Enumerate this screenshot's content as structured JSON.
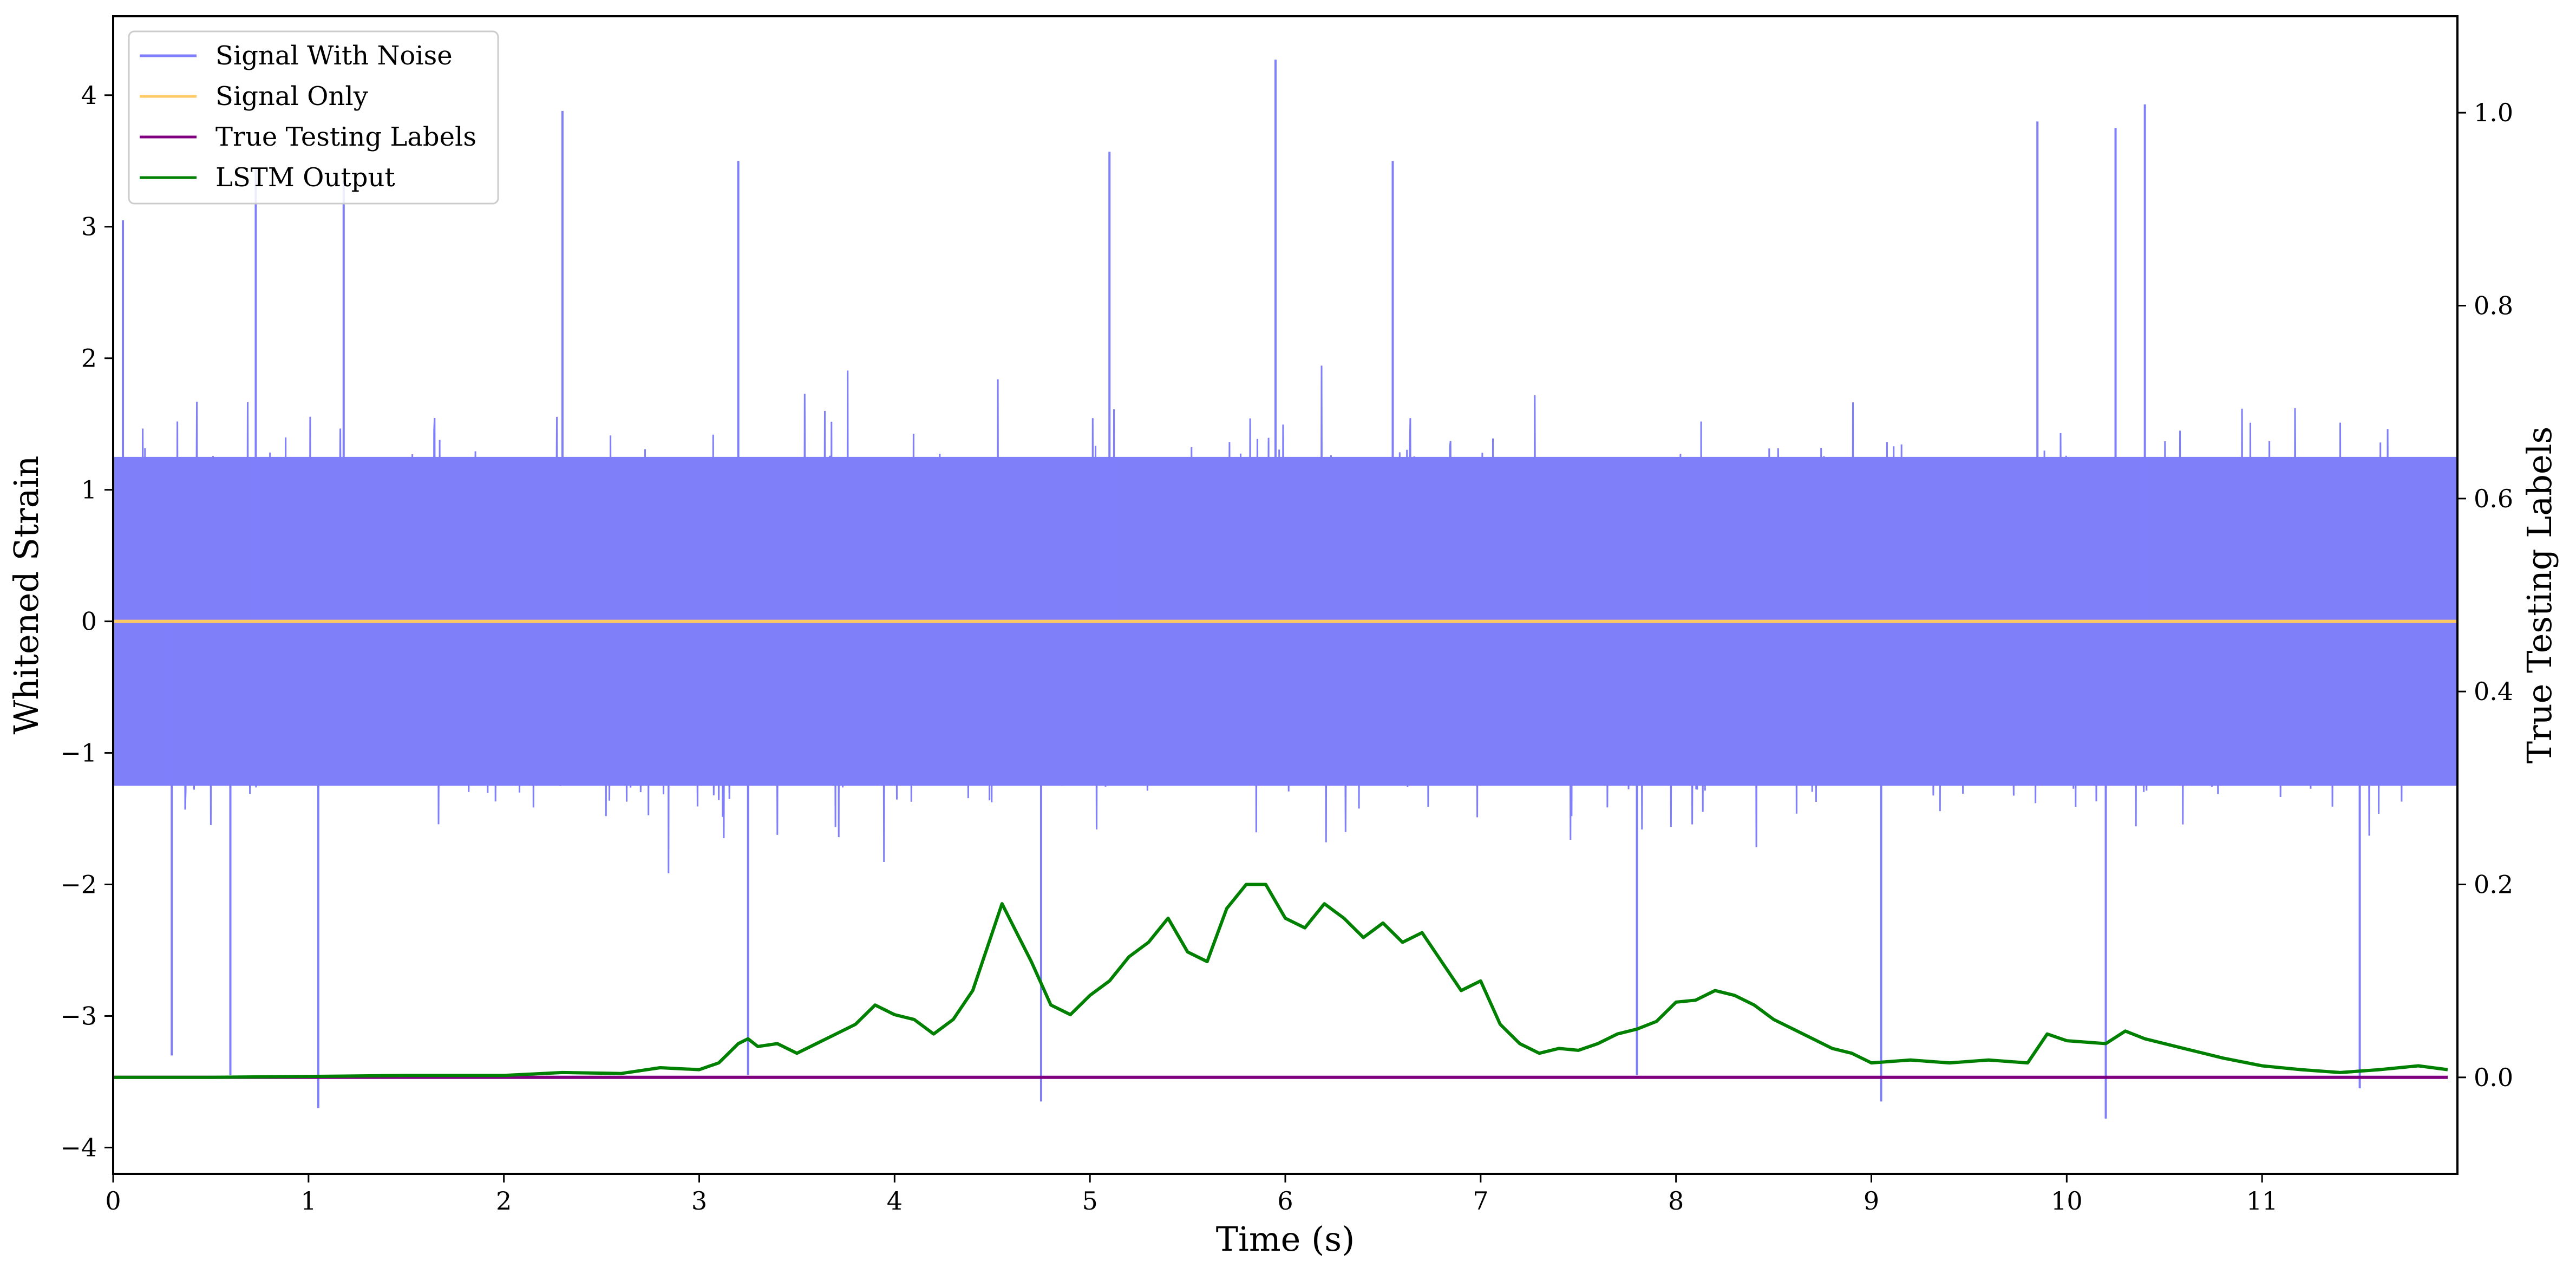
{
  "chart_data": {
    "type": "line",
    "title": "",
    "xlabel": "Time (s)",
    "ylabel": "Whitened Strain",
    "y2label": "True Testing Labels",
    "xlim": [
      0,
      12.0
    ],
    "ylim": [
      -4.2,
      4.6
    ],
    "y2lim": [
      -0.1,
      1.1
    ],
    "x_ticks": [
      0,
      1,
      2,
      3,
      4,
      5,
      6,
      7,
      8,
      9,
      10,
      11
    ],
    "y_ticks": [
      -4,
      -3,
      -2,
      -1,
      0,
      1,
      2,
      3,
      4
    ],
    "y2_ticks": [
      0.0,
      0.2,
      0.4,
      0.6,
      0.8,
      1.0
    ],
    "x_tick_labels": [
      "0",
      "1",
      "2",
      "3",
      "4",
      "5",
      "6",
      "7",
      "8",
      "9",
      "10",
      "11"
    ],
    "y_tick_labels": [
      "−4",
      "−3",
      "−2",
      "−1",
      "0",
      "1",
      "2",
      "3",
      "4"
    ],
    "y2_tick_labels": [
      "0.0",
      "0.2",
      "0.4",
      "0.6",
      "0.8",
      "1.0"
    ],
    "grid": false,
    "legend_position": "top-left",
    "series": [
      {
        "name": "Signal With Noise",
        "axis": "left",
        "color": "#7f7ffa",
        "style": "dense noisy time series, approx. mean 0, std 0.9, spikes up to ~4.3 and down to ~-3.8",
        "x": [
          0,
          0.05,
          0.3,
          0.6,
          0.73,
          1.05,
          1.18,
          2.3,
          3.2,
          3.25,
          4.75,
          5.1,
          5.95,
          6.55,
          7.8,
          9.05,
          9.85,
          10.2,
          10.25,
          10.4,
          11.5,
          12.0
        ],
        "values": [
          0.2,
          3.05,
          -3.3,
          -3.45,
          3.45,
          -3.7,
          3.35,
          3.88,
          3.5,
          -3.45,
          -3.65,
          3.57,
          4.27,
          3.5,
          -3.45,
          -3.65,
          3.8,
          -3.78,
          3.75,
          3.93,
          -3.55,
          0.1
        ]
      },
      {
        "name": "Signal Only",
        "axis": "left",
        "color": "#ffc966",
        "x": [
          0,
          12.0
        ],
        "values": [
          0,
          0
        ]
      },
      {
        "name": "True Testing Labels",
        "axis": "right",
        "color": "#800080",
        "x": [
          0,
          11.95
        ],
        "values": [
          0,
          0
        ]
      },
      {
        "name": "LSTM Output",
        "axis": "right",
        "color": "#008000",
        "x": [
          0,
          0.5,
          1.0,
          1.5,
          2.0,
          2.3,
          2.6,
          2.8,
          3.0,
          3.1,
          3.2,
          3.25,
          3.3,
          3.4,
          3.5,
          3.6,
          3.7,
          3.8,
          3.9,
          4.0,
          4.1,
          4.2,
          4.3,
          4.4,
          4.5,
          4.55,
          4.6,
          4.7,
          4.8,
          4.9,
          5.0,
          5.1,
          5.2,
          5.3,
          5.4,
          5.5,
          5.6,
          5.7,
          5.8,
          5.9,
          6.0,
          6.1,
          6.2,
          6.3,
          6.4,
          6.5,
          6.6,
          6.7,
          6.8,
          6.9,
          7.0,
          7.1,
          7.2,
          7.3,
          7.4,
          7.5,
          7.6,
          7.7,
          7.8,
          7.9,
          8.0,
          8.1,
          8.2,
          8.3,
          8.4,
          8.5,
          8.6,
          8.7,
          8.8,
          8.9,
          9.0,
          9.2,
          9.4,
          9.6,
          9.8,
          9.9,
          10.0,
          10.2,
          10.3,
          10.4,
          10.6,
          10.8,
          11.0,
          11.2,
          11.4,
          11.6,
          11.8,
          11.95
        ],
        "values": [
          0.0,
          0.0,
          0.001,
          0.002,
          0.002,
          0.005,
          0.004,
          0.01,
          0.008,
          0.015,
          0.035,
          0.04,
          0.032,
          0.035,
          0.025,
          0.035,
          0.045,
          0.055,
          0.075,
          0.065,
          0.06,
          0.045,
          0.06,
          0.09,
          0.15,
          0.18,
          0.16,
          0.12,
          0.075,
          0.065,
          0.085,
          0.1,
          0.125,
          0.14,
          0.165,
          0.13,
          0.12,
          0.175,
          0.2,
          0.2,
          0.165,
          0.155,
          0.18,
          0.165,
          0.145,
          0.16,
          0.14,
          0.15,
          0.12,
          0.09,
          0.1,
          0.055,
          0.035,
          0.025,
          0.03,
          0.028,
          0.035,
          0.045,
          0.05,
          0.058,
          0.078,
          0.08,
          0.09,
          0.085,
          0.075,
          0.06,
          0.05,
          0.04,
          0.03,
          0.025,
          0.015,
          0.018,
          0.015,
          0.018,
          0.015,
          0.045,
          0.038,
          0.035,
          0.048,
          0.04,
          0.03,
          0.02,
          0.012,
          0.008,
          0.005,
          0.008,
          0.012,
          0.008
        ]
      }
    ]
  }
}
